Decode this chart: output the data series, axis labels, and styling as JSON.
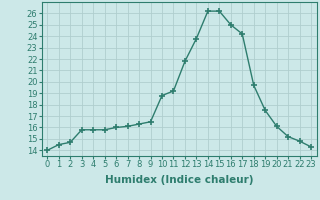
{
  "x": [
    0,
    1,
    2,
    3,
    4,
    5,
    6,
    7,
    8,
    9,
    10,
    11,
    12,
    13,
    14,
    15,
    16,
    17,
    18,
    19,
    20,
    21,
    22,
    23
  ],
  "y": [
    14,
    14.5,
    14.7,
    15.8,
    15.8,
    15.8,
    16.0,
    16.1,
    16.3,
    16.5,
    18.8,
    19.2,
    21.8,
    23.8,
    26.2,
    26.2,
    25.0,
    24.2,
    19.7,
    17.5,
    16.1,
    15.2,
    14.8,
    14.3
  ],
  "line_color": "#2e7d6e",
  "marker": "+",
  "marker_size": 4,
  "marker_lw": 1.2,
  "bg_color": "#cce8e8",
  "grid_color": "#b0cece",
  "xlabel": "Humidex (Indice chaleur)",
  "ylabel": "",
  "xlim": [
    -0.5,
    23.5
  ],
  "ylim": [
    13.5,
    27
  ],
  "xticks": [
    0,
    1,
    2,
    3,
    4,
    5,
    6,
    7,
    8,
    9,
    10,
    11,
    12,
    13,
    14,
    15,
    16,
    17,
    18,
    19,
    20,
    21,
    22,
    23
  ],
  "yticks": [
    14,
    15,
    16,
    17,
    18,
    19,
    20,
    21,
    22,
    23,
    24,
    25,
    26
  ],
  "tick_label_fontsize": 6,
  "xlabel_fontsize": 7.5,
  "linewidth": 1.0
}
